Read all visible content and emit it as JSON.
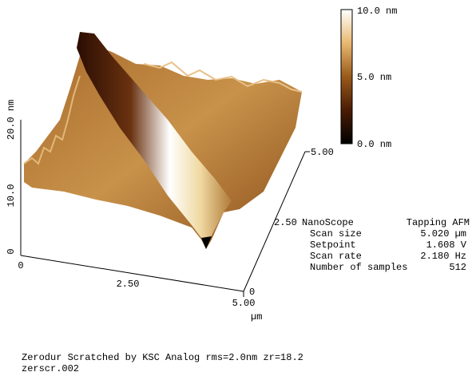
{
  "colorbar": {
    "top": "10.0 nm",
    "middle": "5.0 nm",
    "bottom": "0.0 nm"
  },
  "z_axis": {
    "labels": [
      "20.0 nm",
      "10.0",
      "0"
    ]
  },
  "x_axis": {
    "labels": [
      "0",
      "2.50",
      "5.00"
    ],
    "unit": "µm"
  },
  "y_axis": {
    "labels": [
      "0",
      "2.50",
      "5.00"
    ]
  },
  "info": {
    "title": "NanoScope",
    "mode": "Tapping AFM",
    "rows": [
      [
        "Scan size",
        "5.020 µm"
      ],
      [
        "Setpoint",
        "1.608 V"
      ],
      [
        "Scan rate",
        "2.180 Hz"
      ],
      [
        "Number of samples",
        "512"
      ]
    ]
  },
  "caption": {
    "line1": "Zerodur Scratched by KSC Analog rms=2.0nm zr=18.2",
    "line2": "zerscr.002"
  }
}
